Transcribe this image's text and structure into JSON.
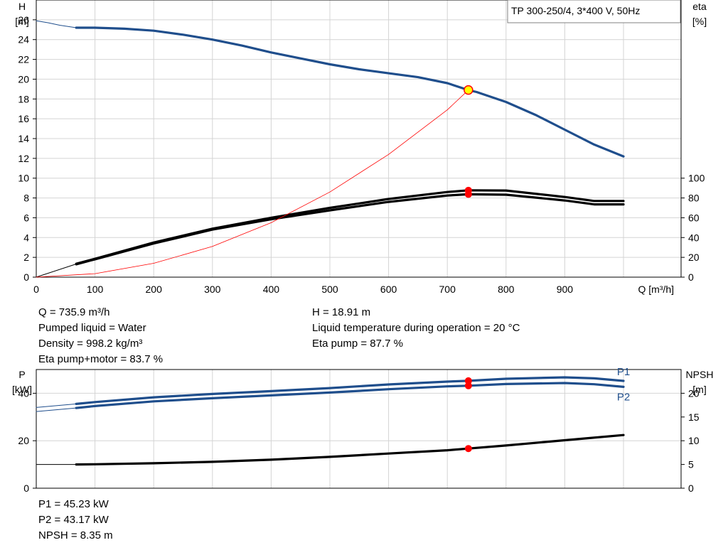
{
  "colors": {
    "curve_blue": "#1f4e8c",
    "curve_black": "#000000",
    "point_red": "#ff0000",
    "point_yellow": "#ffff00",
    "grid": "#d4d4d4"
  },
  "chart_data": [
    {
      "type": "line",
      "title": "TP 300-250/4, 3*400 V, 50Hz",
      "xlabel": "Q [m³/h]",
      "ylabel_left": [
        "H",
        "[m]"
      ],
      "ylabel_right": [
        "eta",
        "[%]"
      ],
      "xlim": [
        0,
        1000
      ],
      "ylim_left": [
        0,
        28
      ],
      "ylim_right": [
        0,
        280
      ],
      "x_ticks": [
        0,
        100,
        200,
        300,
        400,
        500,
        600,
        700,
        800,
        900
      ],
      "y_ticks_left": [
        0,
        2,
        4,
        6,
        8,
        10,
        12,
        14,
        16,
        18,
        20,
        22,
        24,
        26
      ],
      "y_ticks_right": [
        0,
        20,
        40,
        60,
        80,
        100
      ],
      "grid": true,
      "series": [
        {
          "name": "H",
          "axis": "left",
          "style": "thick-blue",
          "x": [
            68,
            100,
            150,
            200,
            250,
            300,
            350,
            400,
            450,
            500,
            550,
            600,
            650,
            700,
            736,
            750,
            800,
            850,
            900,
            950,
            1000
          ],
          "values": [
            25.2,
            25.2,
            25.1,
            24.9,
            24.5,
            24.0,
            23.4,
            22.7,
            22.1,
            21.5,
            21.0,
            20.6,
            20.2,
            19.6,
            18.9,
            18.7,
            17.7,
            16.4,
            14.9,
            13.4,
            12.2
          ]
        },
        {
          "name": "H (extrapolated)",
          "axis": "left",
          "style": "thin-blue",
          "x": [
            0,
            20,
            40,
            68
          ],
          "values": [
            25.9,
            25.7,
            25.45,
            25.2
          ]
        },
        {
          "name": "Eta pump",
          "axis": "right",
          "style": "thick-black",
          "x": [
            68,
            100,
            200,
            300,
            400,
            500,
            600,
            700,
            736,
            800,
            900,
            950,
            1000
          ],
          "values": [
            13.5,
            18.5,
            35,
            49,
            60,
            70,
            79,
            86,
            87.7,
            87.5,
            81,
            77,
            77
          ]
        },
        {
          "name": "Eta pump+motor",
          "axis": "right",
          "style": "thick-black",
          "x": [
            68,
            100,
            200,
            300,
            400,
            500,
            600,
            700,
            736,
            800,
            900,
            950,
            1000
          ],
          "values": [
            13,
            18,
            34,
            48,
            58.5,
            67.5,
            76,
            82.5,
            83.7,
            83.3,
            77.5,
            73.5,
            73.5
          ]
        },
        {
          "name": "Eta (extrapolated)",
          "axis": "right",
          "style": "thin-black",
          "x": [
            0,
            68
          ],
          "values": [
            0,
            13.3
          ]
        },
        {
          "name": "System curve",
          "axis": "left",
          "style": "thin-red",
          "x": [
            0,
            100,
            200,
            300,
            400,
            500,
            600,
            700,
            736
          ],
          "values": [
            0,
            0.35,
            1.4,
            3.1,
            5.5,
            8.6,
            12.4,
            16.9,
            18.91
          ]
        }
      ],
      "markers": [
        {
          "x": 735.9,
          "y": 18.91,
          "axis": "left",
          "style": "yellow-red"
        },
        {
          "x": 735.9,
          "y": 87.7,
          "axis": "right",
          "style": "red"
        },
        {
          "x": 735.9,
          "y": 83.7,
          "axis": "right",
          "style": "red"
        }
      ]
    },
    {
      "type": "line",
      "ylabel_left": [
        "P",
        "[kW]"
      ],
      "ylabel_right": [
        "NPSH",
        "[m]"
      ],
      "xlim": [
        0,
        1000
      ],
      "ylim_left": [
        0,
        50
      ],
      "ylim_right": [
        0,
        25
      ],
      "y_ticks_left": [
        0,
        20,
        40
      ],
      "y_ticks_right": [
        0,
        5,
        10,
        15,
        20
      ],
      "grid": true,
      "series": [
        {
          "name": "P1",
          "axis": "left",
          "style": "thick-blue",
          "label": "P1",
          "x": [
            68,
            100,
            200,
            300,
            400,
            500,
            600,
            700,
            736,
            800,
            900,
            950,
            1000
          ],
          "values": [
            35.5,
            36.3,
            38.3,
            39.7,
            40.9,
            42.2,
            43.7,
            44.9,
            45.23,
            46.1,
            46.7,
            46.3,
            45.2
          ]
        },
        {
          "name": "P2",
          "axis": "left",
          "style": "thick-blue",
          "label": "P2",
          "x": [
            68,
            100,
            200,
            300,
            400,
            500,
            600,
            700,
            736,
            800,
            900,
            950,
            1000
          ],
          "values": [
            33.8,
            34.6,
            36.6,
            37.9,
            39.1,
            40.3,
            41.7,
            42.9,
            43.17,
            43.9,
            44.3,
            43.8,
            42.7
          ]
        },
        {
          "name": "P1 (extrapolated)",
          "axis": "left",
          "style": "thin-blue",
          "x": [
            0,
            68
          ],
          "values": [
            34.0,
            35.5
          ]
        },
        {
          "name": "P2 (extrapolated)",
          "axis": "left",
          "style": "thin-blue",
          "x": [
            0,
            68
          ],
          "values": [
            32.3,
            33.8
          ]
        },
        {
          "name": "NPSH",
          "axis": "right",
          "style": "thick-black",
          "x": [
            68,
            100,
            200,
            300,
            400,
            500,
            600,
            700,
            736,
            800,
            900,
            1000
          ],
          "values": [
            5.0,
            5.05,
            5.25,
            5.55,
            6.0,
            6.6,
            7.3,
            8.0,
            8.35,
            9.0,
            10.1,
            11.2
          ]
        },
        {
          "name": "NPSH (extrapolated)",
          "axis": "right",
          "style": "thin-black",
          "x": [
            0,
            68
          ],
          "values": [
            5.0,
            5.0
          ]
        }
      ],
      "markers": [
        {
          "x": 735.9,
          "y": 45.23,
          "axis": "left",
          "style": "red"
        },
        {
          "x": 735.9,
          "y": 43.17,
          "axis": "left",
          "style": "red"
        },
        {
          "x": 735.9,
          "y": 8.35,
          "axis": "right",
          "style": "red"
        }
      ]
    }
  ],
  "info_top_left": [
    "Q = 735.9 m³/h",
    "Pumped liquid = Water",
    "Density = 998.2 kg/m³",
    "Eta pump+motor = 83.7 %"
  ],
  "info_top_right": [
    "H = 18.91 m",
    "Liquid temperature during operation = 20 °C",
    "Eta pump = 87.7 %"
  ],
  "info_bottom": [
    "P1 = 45.23 kW",
    "P2 = 43.17 kW",
    "NPSH = 8.35 m"
  ]
}
